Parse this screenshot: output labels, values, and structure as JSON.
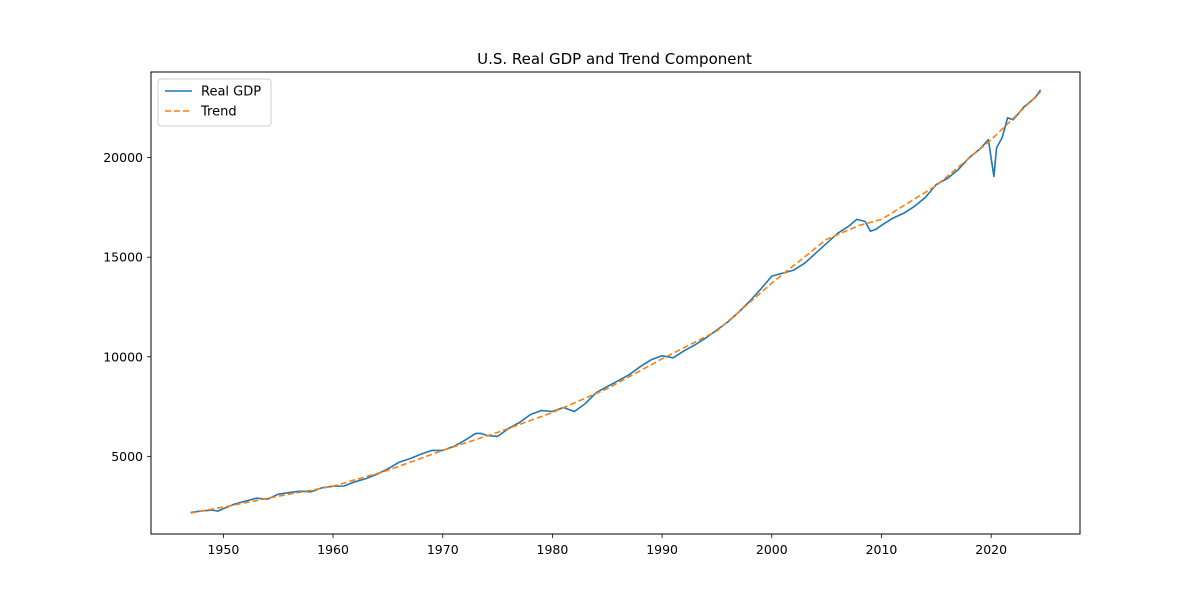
{
  "chart_data": {
    "type": "line",
    "title": "U.S. Real GDP and Trend Component",
    "xlabel": "",
    "ylabel": "",
    "xlim": [
      1943.4,
      2028.1
    ],
    "ylim": [
      1100,
      24300
    ],
    "xticks": [
      1950,
      1960,
      1970,
      1980,
      1990,
      2000,
      2010,
      2020
    ],
    "yticks": [
      5000,
      10000,
      15000,
      20000
    ],
    "grid": false,
    "legend": {
      "position": "upper-left"
    },
    "series": [
      {
        "name": "Real GDP",
        "style": "solid",
        "color": "#1f77b4",
        "x": [
          1947.0,
          1948.0,
          1949.0,
          1949.5,
          1950.0,
          1951.0,
          1952.0,
          1953.0,
          1954.0,
          1955.0,
          1956.0,
          1957.0,
          1958.0,
          1959.0,
          1960.0,
          1961.0,
          1962.0,
          1963.0,
          1964.0,
          1965.0,
          1966.0,
          1967.0,
          1968.0,
          1969.0,
          1970.0,
          1971.0,
          1972.0,
          1973.0,
          1973.5,
          1974.0,
          1975.0,
          1976.0,
          1977.0,
          1978.0,
          1979.0,
          1980.0,
          1981.0,
          1982.0,
          1983.0,
          1984.0,
          1985.0,
          1986.0,
          1987.0,
          1988.0,
          1989.0,
          1990.0,
          1991.0,
          1992.0,
          1993.0,
          1994.0,
          1995.0,
          1996.0,
          1997.0,
          1998.0,
          1999.0,
          2000.0,
          2001.0,
          2002.0,
          2003.0,
          2004.0,
          2005.0,
          2006.0,
          2007.0,
          2007.75,
          2008.5,
          2009.0,
          2009.5,
          2010.0,
          2011.0,
          2012.0,
          2013.0,
          2014.0,
          2015.0,
          2016.0,
          2017.0,
          2018.0,
          2019.0,
          2019.75,
          2020.25,
          2020.5,
          2021.0,
          2021.5,
          2022.0,
          2023.0,
          2024.0,
          2024.5
        ],
        "values": [
          2180,
          2260,
          2300,
          2250,
          2370,
          2600,
          2750,
          2900,
          2850,
          3100,
          3180,
          3250,
          3220,
          3420,
          3500,
          3510,
          3720,
          3880,
          4100,
          4370,
          4700,
          4880,
          5100,
          5300,
          5300,
          5500,
          5800,
          6150,
          6150,
          6050,
          6000,
          6400,
          6700,
          7100,
          7300,
          7250,
          7450,
          7250,
          7650,
          8200,
          8500,
          8800,
          9100,
          9500,
          9850,
          10050,
          9950,
          10300,
          10600,
          10950,
          11350,
          11750,
          12250,
          12800,
          13400,
          14050,
          14200,
          14350,
          14700,
          15200,
          15700,
          16200,
          16550,
          16900,
          16800,
          16300,
          16400,
          16600,
          16950,
          17200,
          17550,
          18000,
          18650,
          18950,
          19400,
          20000,
          20450,
          20900,
          19050,
          20500,
          21000,
          22000,
          21900,
          22550,
          23000,
          23400
        ]
      },
      {
        "name": "Trend",
        "style": "dashed",
        "color": "#ff7f0e",
        "x": [
          1947.0,
          1950.0,
          1955.0,
          1960.0,
          1965.0,
          1970.0,
          1975.0,
          1980.0,
          1985.0,
          1990.0,
          1995.0,
          2000.0,
          2005.0,
          2008.0,
          2010.0,
          2015.0,
          2020.0,
          2024.5
        ],
        "values": [
          2150,
          2450,
          3000,
          3500,
          4300,
          5300,
          6200,
          7200,
          8400,
          9900,
          11300,
          13700,
          15900,
          16600,
          16900,
          18600,
          20900,
          23300
        ]
      }
    ]
  }
}
